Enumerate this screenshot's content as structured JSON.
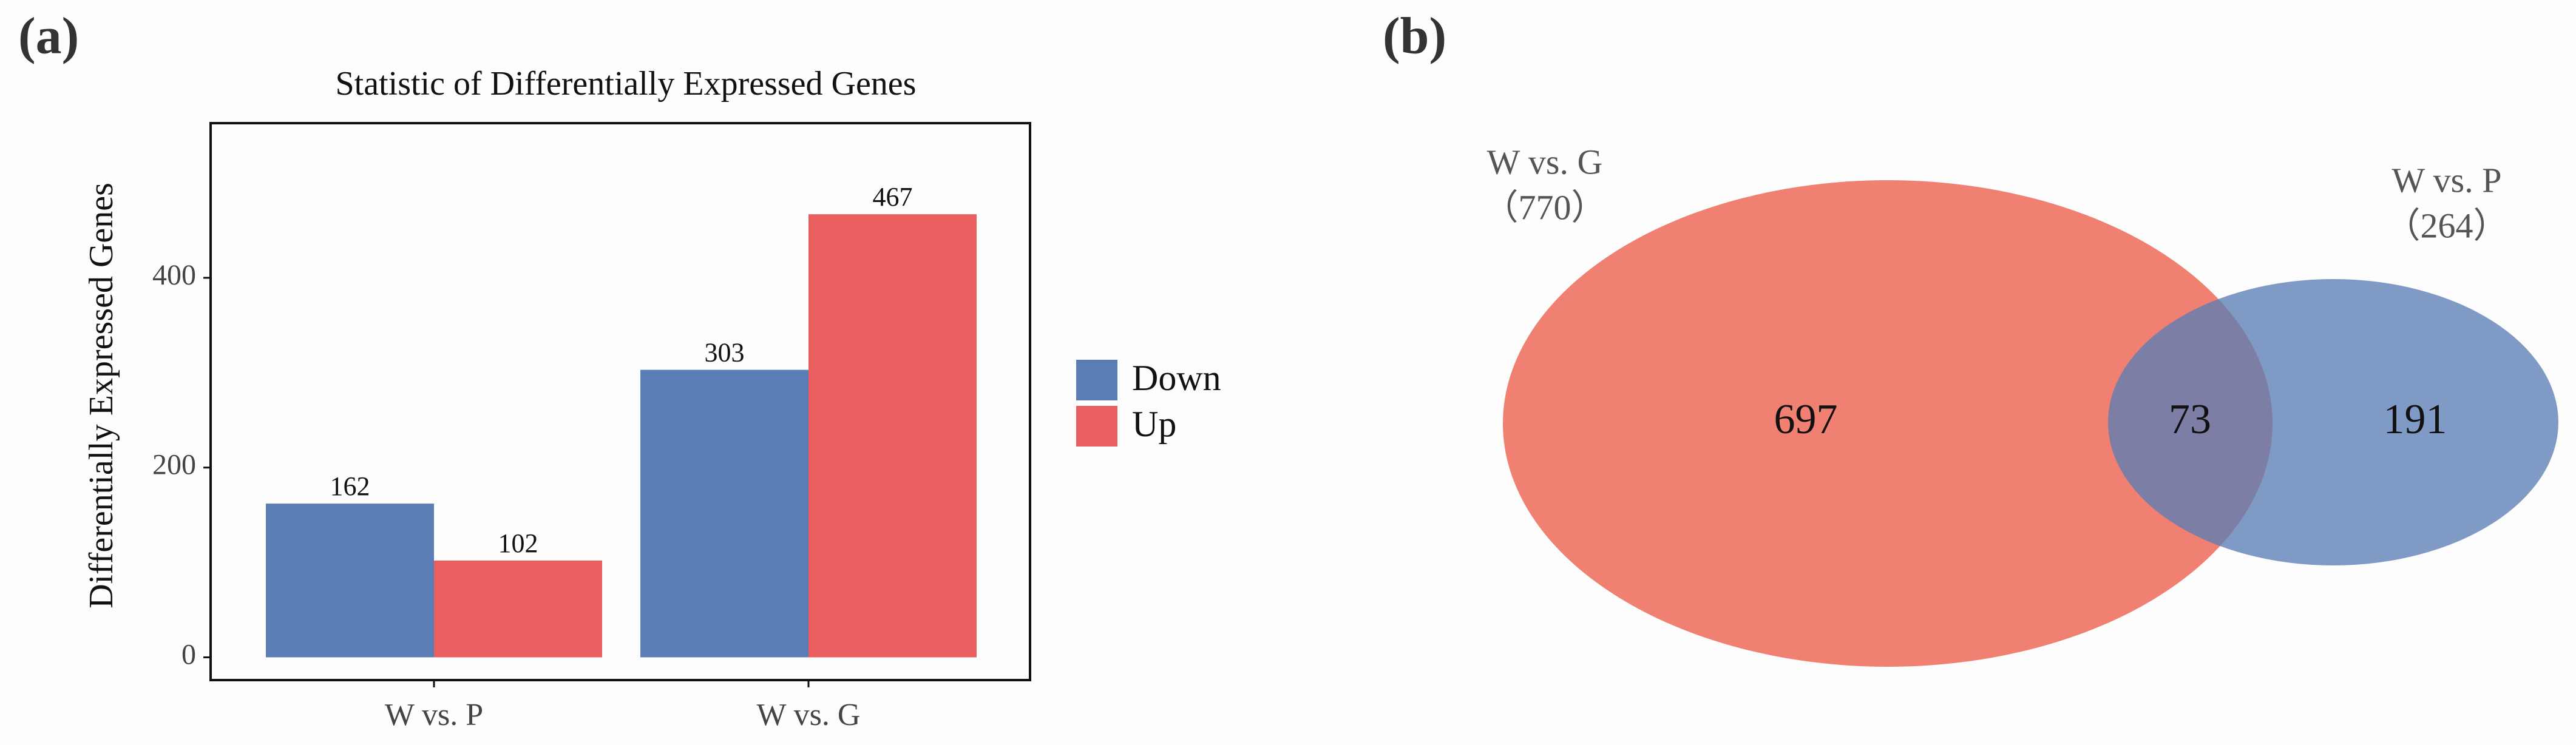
{
  "chart_data": [
    {
      "type": "bar",
      "panel_label": "(a)",
      "title": "Statistic of Differentially Expressed Genes",
      "y_label": "Differentially Expressed Genes",
      "categories": [
        "W vs. P",
        "W vs. G"
      ],
      "series": [
        {
          "name": "Down",
          "color": "#5b7db5",
          "values": [
            162,
            303
          ]
        },
        {
          "name": "Up",
          "color": "#e95e5f",
          "values": [
            102,
            467
          ]
        }
      ],
      "ylim": [
        -24,
        563
      ],
      "yticks": [
        0,
        200,
        400
      ],
      "grid": false,
      "legend": "right"
    },
    {
      "type": "venn",
      "panel_label": "(b)",
      "sets": [
        {
          "name": "W vs. G",
          "size": 770,
          "size_label": "（770）",
          "color": "#ef8072"
        },
        {
          "name": "W vs. P",
          "size": 264,
          "size_label": "（264）",
          "color": "#5b7db5"
        }
      ],
      "values": [
        697,
        73,
        191
      ]
    }
  ]
}
